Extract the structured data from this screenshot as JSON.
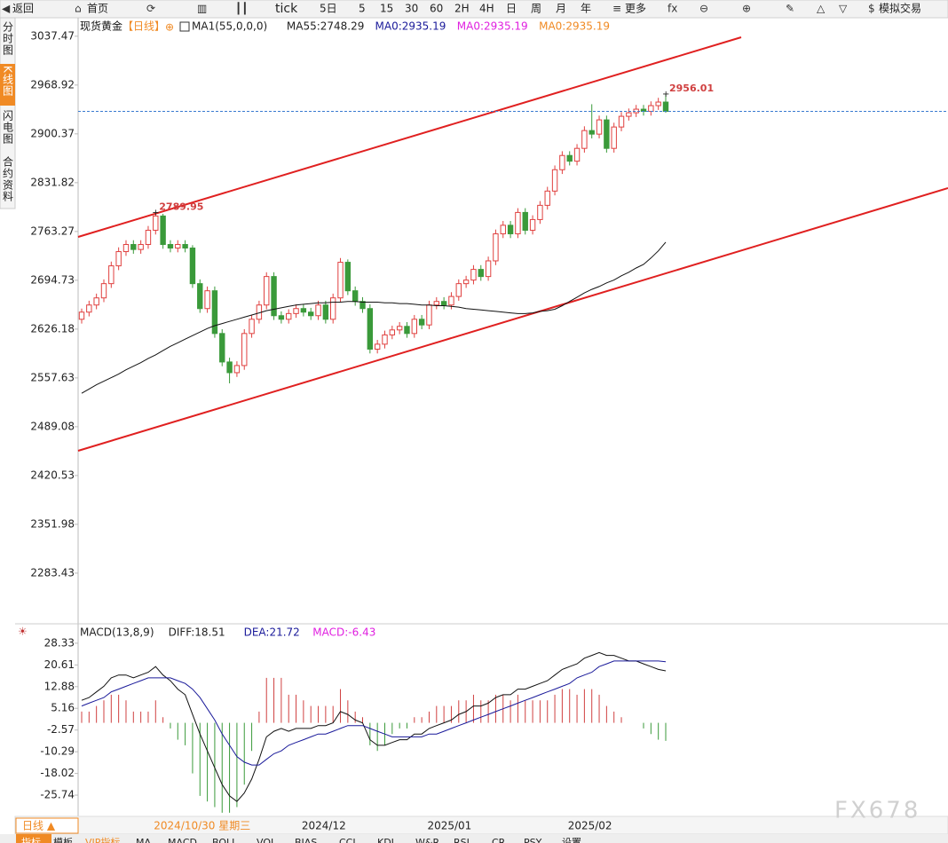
{
  "toolbar": [
    "返回",
    "首页",
    "tick",
    "5日",
    "5",
    "15",
    "30",
    "60",
    "2H",
    "4H",
    "日",
    "周",
    "月",
    "年",
    "更多",
    "模拟交易"
  ],
  "sidebar": [
    "分时图",
    "K线图",
    "闪电图",
    "合约资料"
  ],
  "period": "日线 ▲",
  "tabs": [
    "指标",
    "模板",
    "VIP指标",
    "MA",
    "MACD",
    "BOLL",
    "VOL",
    "BIAS",
    "CCI",
    "KDJ",
    "W&R",
    "RSI",
    "CR",
    "PSY",
    "设置"
  ],
  "watermark": "FX678",
  "chart_data": [
    {
      "type": "candlestick",
      "title": "现货黄金",
      "subtitle": "【日线】",
      "legend": [
        {
          "text": "MA1(55,0,0,0)",
          "color": "#222222"
        },
        {
          "text": "MA55:2748.29",
          "color": "#222222"
        },
        {
          "text": "MA0:2935.19",
          "color": "#1a1a9a"
        },
        {
          "text": "MA0:2935.19",
          "color": "#e020e0"
        },
        {
          "text": "MA0:2935.19",
          "color": "#f08a24"
        }
      ],
      "categories": [
        null,
        null,
        null,
        null,
        null,
        null,
        null,
        null,
        null,
        null,
        "2024/10/30 星期三",
        null,
        null,
        null,
        null,
        null,
        null,
        null,
        null,
        null,
        null,
        null,
        null,
        null,
        null,
        null,
        null,
        null,
        null,
        null,
        "2024/12",
        null,
        null,
        null,
        null,
        null,
        null,
        null,
        null,
        null,
        null,
        null,
        null,
        null,
        null,
        null,
        null,
        "2025/01",
        null,
        null,
        null,
        null,
        null,
        null,
        null,
        null,
        null,
        null,
        null,
        null,
        null,
        null,
        null,
        null,
        null,
        null,
        "2025/02",
        null,
        null,
        null,
        null,
        null,
        null,
        null,
        null,
        null,
        null,
        null,
        null,
        null
      ],
      "candles": [
        [
          2640,
          2655,
          2634,
          2650
        ],
        [
          2650,
          2666,
          2644,
          2660
        ],
        [
          2660,
          2676,
          2654,
          2670
        ],
        [
          2670,
          2696,
          2664,
          2690
        ],
        [
          2690,
          2721,
          2684,
          2715
        ],
        [
          2715,
          2741,
          2709,
          2735
        ],
        [
          2735,
          2751,
          2729,
          2745
        ],
        [
          2745,
          2751,
          2732,
          2738
        ],
        [
          2738,
          2751,
          2732,
          2745
        ],
        [
          2745,
          2771,
          2739,
          2765
        ],
        [
          2765,
          2789.95,
          2759,
          2785
        ],
        [
          2785,
          2788,
          2739,
          2745
        ],
        [
          2745,
          2751,
          2734,
          2740
        ],
        [
          2740,
          2751,
          2734,
          2745
        ],
        [
          2745,
          2751,
          2734,
          2740
        ],
        [
          2740,
          2744,
          2684,
          2690
        ],
        [
          2690,
          2696,
          2649,
          2655
        ],
        [
          2655,
          2686,
          2649,
          2680
        ],
        [
          2680,
          2686,
          2614,
          2620
        ],
        [
          2620,
          2626,
          2574,
          2580
        ],
        [
          2580,
          2586,
          2550,
          2565
        ],
        [
          2565,
          2581,
          2559,
          2575
        ],
        [
          2575,
          2626,
          2569,
          2620
        ],
        [
          2620,
          2646,
          2614,
          2640
        ],
        [
          2640,
          2666,
          2634,
          2660
        ],
        [
          2660,
          2706,
          2654,
          2700
        ],
        [
          2700,
          2706,
          2639,
          2645
        ],
        [
          2645,
          2651,
          2634,
          2640
        ],
        [
          2640,
          2654,
          2634,
          2648
        ],
        [
          2648,
          2661,
          2642,
          2655
        ],
        [
          2655,
          2661,
          2644,
          2650
        ],
        [
          2650,
          2656,
          2639,
          2645
        ],
        [
          2645,
          2666,
          2639,
          2660
        ],
        [
          2660,
          2666,
          2634,
          2640
        ],
        [
          2640,
          2676,
          2634,
          2670
        ],
        [
          2670,
          2726,
          2664,
          2720
        ],
        [
          2720,
          2724,
          2674,
          2680
        ],
        [
          2680,
          2686,
          2659,
          2665
        ],
        [
          2665,
          2671,
          2649,
          2655
        ],
        [
          2655,
          2661,
          2592,
          2598
        ],
        [
          2598,
          2611,
          2592,
          2605
        ],
        [
          2605,
          2624,
          2599,
          2618
        ],
        [
          2618,
          2631,
          2612,
          2625
        ],
        [
          2625,
          2636,
          2619,
          2630
        ],
        [
          2630,
          2636,
          2614,
          2620
        ],
        [
          2620,
          2646,
          2614,
          2640
        ],
        [
          2640,
          2646,
          2626,
          2632
        ],
        [
          2632,
          2666,
          2626,
          2660
        ],
        [
          2660,
          2671,
          2654,
          2665
        ],
        [
          2665,
          2671,
          2654,
          2660
        ],
        [
          2660,
          2678,
          2654,
          2672
        ],
        [
          2672,
          2696,
          2666,
          2690
        ],
        [
          2690,
          2701,
          2684,
          2695
        ],
        [
          2695,
          2716,
          2689,
          2710
        ],
        [
          2710,
          2716,
          2694,
          2700
        ],
        [
          2700,
          2728,
          2694,
          2722
        ],
        [
          2722,
          2766,
          2716,
          2760
        ],
        [
          2760,
          2778,
          2754,
          2772
        ],
        [
          2772,
          2778,
          2754,
          2760
        ],
        [
          2760,
          2796,
          2754,
          2790
        ],
        [
          2790,
          2796,
          2759,
          2765
        ],
        [
          2765,
          2786,
          2759,
          2780
        ],
        [
          2780,
          2806,
          2774,
          2800
        ],
        [
          2800,
          2826,
          2794,
          2820
        ],
        [
          2820,
          2856,
          2814,
          2850
        ],
        [
          2850,
          2876,
          2844,
          2870
        ],
        [
          2870,
          2876,
          2856,
          2862
        ],
        [
          2862,
          2886,
          2856,
          2880
        ],
        [
          2880,
          2911,
          2874,
          2905
        ],
        [
          2905,
          2942,
          2894,
          2900
        ],
        [
          2900,
          2926,
          2894,
          2920
        ],
        [
          2920,
          2926,
          2874,
          2880
        ],
        [
          2880,
          2916,
          2874,
          2910
        ],
        [
          2910,
          2931,
          2904,
          2925
        ],
        [
          2925,
          2936,
          2919,
          2930
        ],
        [
          2930,
          2941,
          2924,
          2935
        ],
        [
          2935,
          2941,
          2926,
          2932
        ],
        [
          2932,
          2946,
          2926,
          2940
        ],
        [
          2940,
          2951,
          2934,
          2945
        ],
        [
          2945,
          2956.01,
          2930,
          2932
        ]
      ],
      "up_color": "#e0403f",
      "down_color": "#3a9a3a",
      "series": [
        {
          "name": "MA55",
          "color": "#111111",
          "values": [
            2536,
            2542,
            2548,
            2553,
            2558,
            2563,
            2569,
            2574,
            2579,
            2585,
            2590,
            2596,
            2602,
            2607,
            2612,
            2617,
            2622,
            2627,
            2631,
            2634,
            2637,
            2640,
            2643,
            2646,
            2649,
            2652,
            2654,
            2656,
            2658,
            2660,
            2661,
            2662,
            2663,
            2663,
            2664,
            2664,
            2665,
            2665,
            2664,
            2664,
            2664,
            2663,
            2663,
            2662,
            2662,
            2661,
            2660,
            2660,
            2659,
            2659,
            2658,
            2657,
            2655,
            2654,
            2653,
            2652,
            2651,
            2650,
            2649,
            2648,
            2648,
            2649,
            2651,
            2652,
            2654,
            2659,
            2665,
            2671,
            2677,
            2682,
            2686,
            2691,
            2695,
            2701,
            2706,
            2712,
            2717,
            2726,
            2736,
            2748.29
          ]
        }
      ],
      "ylim": [
        2216,
        3041
      ],
      "yticks": [
        3037.47,
        2968.92,
        2900.37,
        2831.82,
        2763.27,
        2694.73,
        2626.18,
        2557.63,
        2489.08,
        2420.53,
        2351.98,
        2283.43
      ],
      "grid": false
    },
    {
      "type": "macd",
      "legend": [
        {
          "text": "MACD(13,8,9)",
          "color": "#222222"
        },
        {
          "text": "DIFF:18.51",
          "color": "#222222"
        },
        {
          "text": "DEA:21.72",
          "color": "#1a1a9a"
        },
        {
          "text": "MACD:-6.43",
          "color": "#e020e0"
        }
      ],
      "series": [
        {
          "name": "DIFF",
          "color": "#111111",
          "values": [
            8,
            9,
            11,
            13,
            16,
            17,
            17,
            16,
            17,
            18,
            20,
            17,
            15,
            12,
            10,
            3,
            -4,
            -10,
            -16,
            -22,
            -26,
            -28,
            -25,
            -20,
            -13,
            -5,
            -3,
            -2,
            -3,
            -2,
            -2,
            -2,
            -1,
            -1,
            0,
            4,
            3,
            1,
            0,
            -6,
            -8,
            -8,
            -7,
            -6,
            -6,
            -4,
            -4,
            -2,
            -1,
            0,
            1,
            3,
            4,
            6,
            6,
            7,
            9,
            10,
            10,
            12,
            12,
            13,
            14,
            15,
            17,
            19,
            20,
            21,
            23,
            24,
            25,
            24,
            24,
            23,
            22,
            22,
            21,
            20,
            19,
            18.51
          ]
        },
        {
          "name": "DEA",
          "color": "#1a1a9a",
          "values": [
            6,
            7,
            8,
            9,
            11,
            12,
            13,
            14,
            15,
            16,
            16,
            16,
            16,
            15,
            14,
            12,
            9,
            5,
            1,
            -4,
            -8,
            -12,
            -14,
            -15,
            -15,
            -13,
            -11,
            -10,
            -8,
            -7,
            -6,
            -5,
            -4,
            -4,
            -3,
            -2,
            -1,
            -1,
            -1,
            -2,
            -3,
            -4,
            -5,
            -5,
            -5,
            -5,
            -5,
            -4,
            -4,
            -3,
            -2,
            -1,
            0,
            1,
            2,
            3,
            4,
            5,
            6,
            7,
            8,
            9,
            10,
            11,
            12,
            13,
            14,
            16,
            17,
            18,
            20,
            21,
            22,
            22,
            22,
            22,
            22,
            22,
            22,
            21.72
          ]
        }
      ],
      "histogram": [
        4,
        4,
        6,
        8,
        10,
        10,
        8,
        4,
        4,
        4,
        8,
        2,
        -2,
        -6,
        -8,
        -18,
        -26,
        -28,
        -30,
        -32,
        -32,
        -30,
        -22,
        -10,
        4,
        16,
        16,
        16,
        10,
        10,
        8,
        6,
        6,
        6,
        6,
        12,
        8,
        4,
        2,
        -8,
        -10,
        -8,
        -4,
        -2,
        -2,
        2,
        2,
        4,
        6,
        6,
        6,
        8,
        8,
        10,
        8,
        8,
        10,
        10,
        8,
        10,
        8,
        8,
        8,
        8,
        10,
        12,
        12,
        10,
        12,
        12,
        10,
        6,
        4,
        2,
        0,
        0,
        -2,
        -4,
        -6,
        -6.43
      ],
      "up_color": "#d04040",
      "down_color": "#3a9a3a",
      "ylim": [
        -33.3,
        30.5
      ],
      "yticks": [
        28.33,
        20.61,
        12.88,
        5.16,
        -2.57,
        -10.29,
        -18.02,
        -25.74
      ]
    }
  ]
}
